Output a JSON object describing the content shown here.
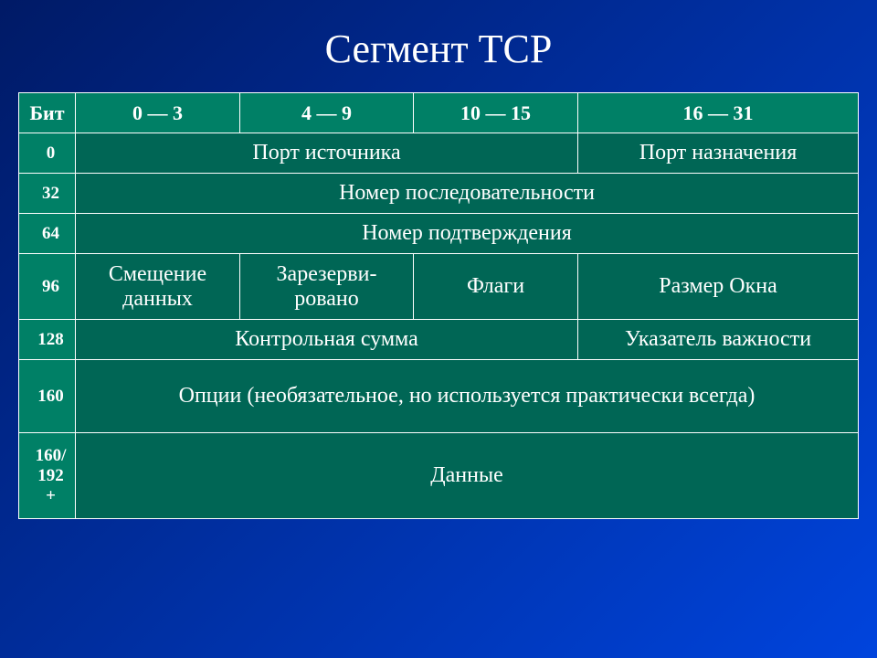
{
  "slide": {
    "title": "Сегмент TCP",
    "background_gradient_from": "#001a66",
    "background_gradient_to": "#0044dd"
  },
  "table": {
    "type": "table",
    "header_bg": "#008066",
    "cell_bg": "#006655",
    "border_color": "#ffffff",
    "text_color": "#ffffff",
    "header_font_size": 22,
    "cell_font_size": 24,
    "rowlabel_font_size": 19,
    "columns": {
      "bit": "Бит",
      "c0_3": "0 — 3",
      "c4_9": "4 — 9",
      "c10_15": "10 — 15",
      "c16_31": "16 — 31"
    },
    "rows": {
      "r0": {
        "label": "0",
        "src_port": "Порт источника",
        "dst_port": "Порт назначения"
      },
      "r32": {
        "label": "32",
        "seq": "Номер последовательности"
      },
      "r64": {
        "label": "64",
        "ack": "Номер подтверждения"
      },
      "r96": {
        "label": "96",
        "offset": "Смещение данных",
        "reserved": "Зарезерви-\nровано",
        "flags": "Флаги",
        "winsize": "Размер Окна"
      },
      "r128": {
        "label": "128",
        "checksum": "Контрольная сумма",
        "urgptr": "Указатель важности"
      },
      "r160": {
        "label": "160",
        "options": "Опции (необязательное, но используется практически всегда)"
      },
      "rdata": {
        "label": "160/\n192\n+",
        "data": "Данные"
      }
    }
  }
}
